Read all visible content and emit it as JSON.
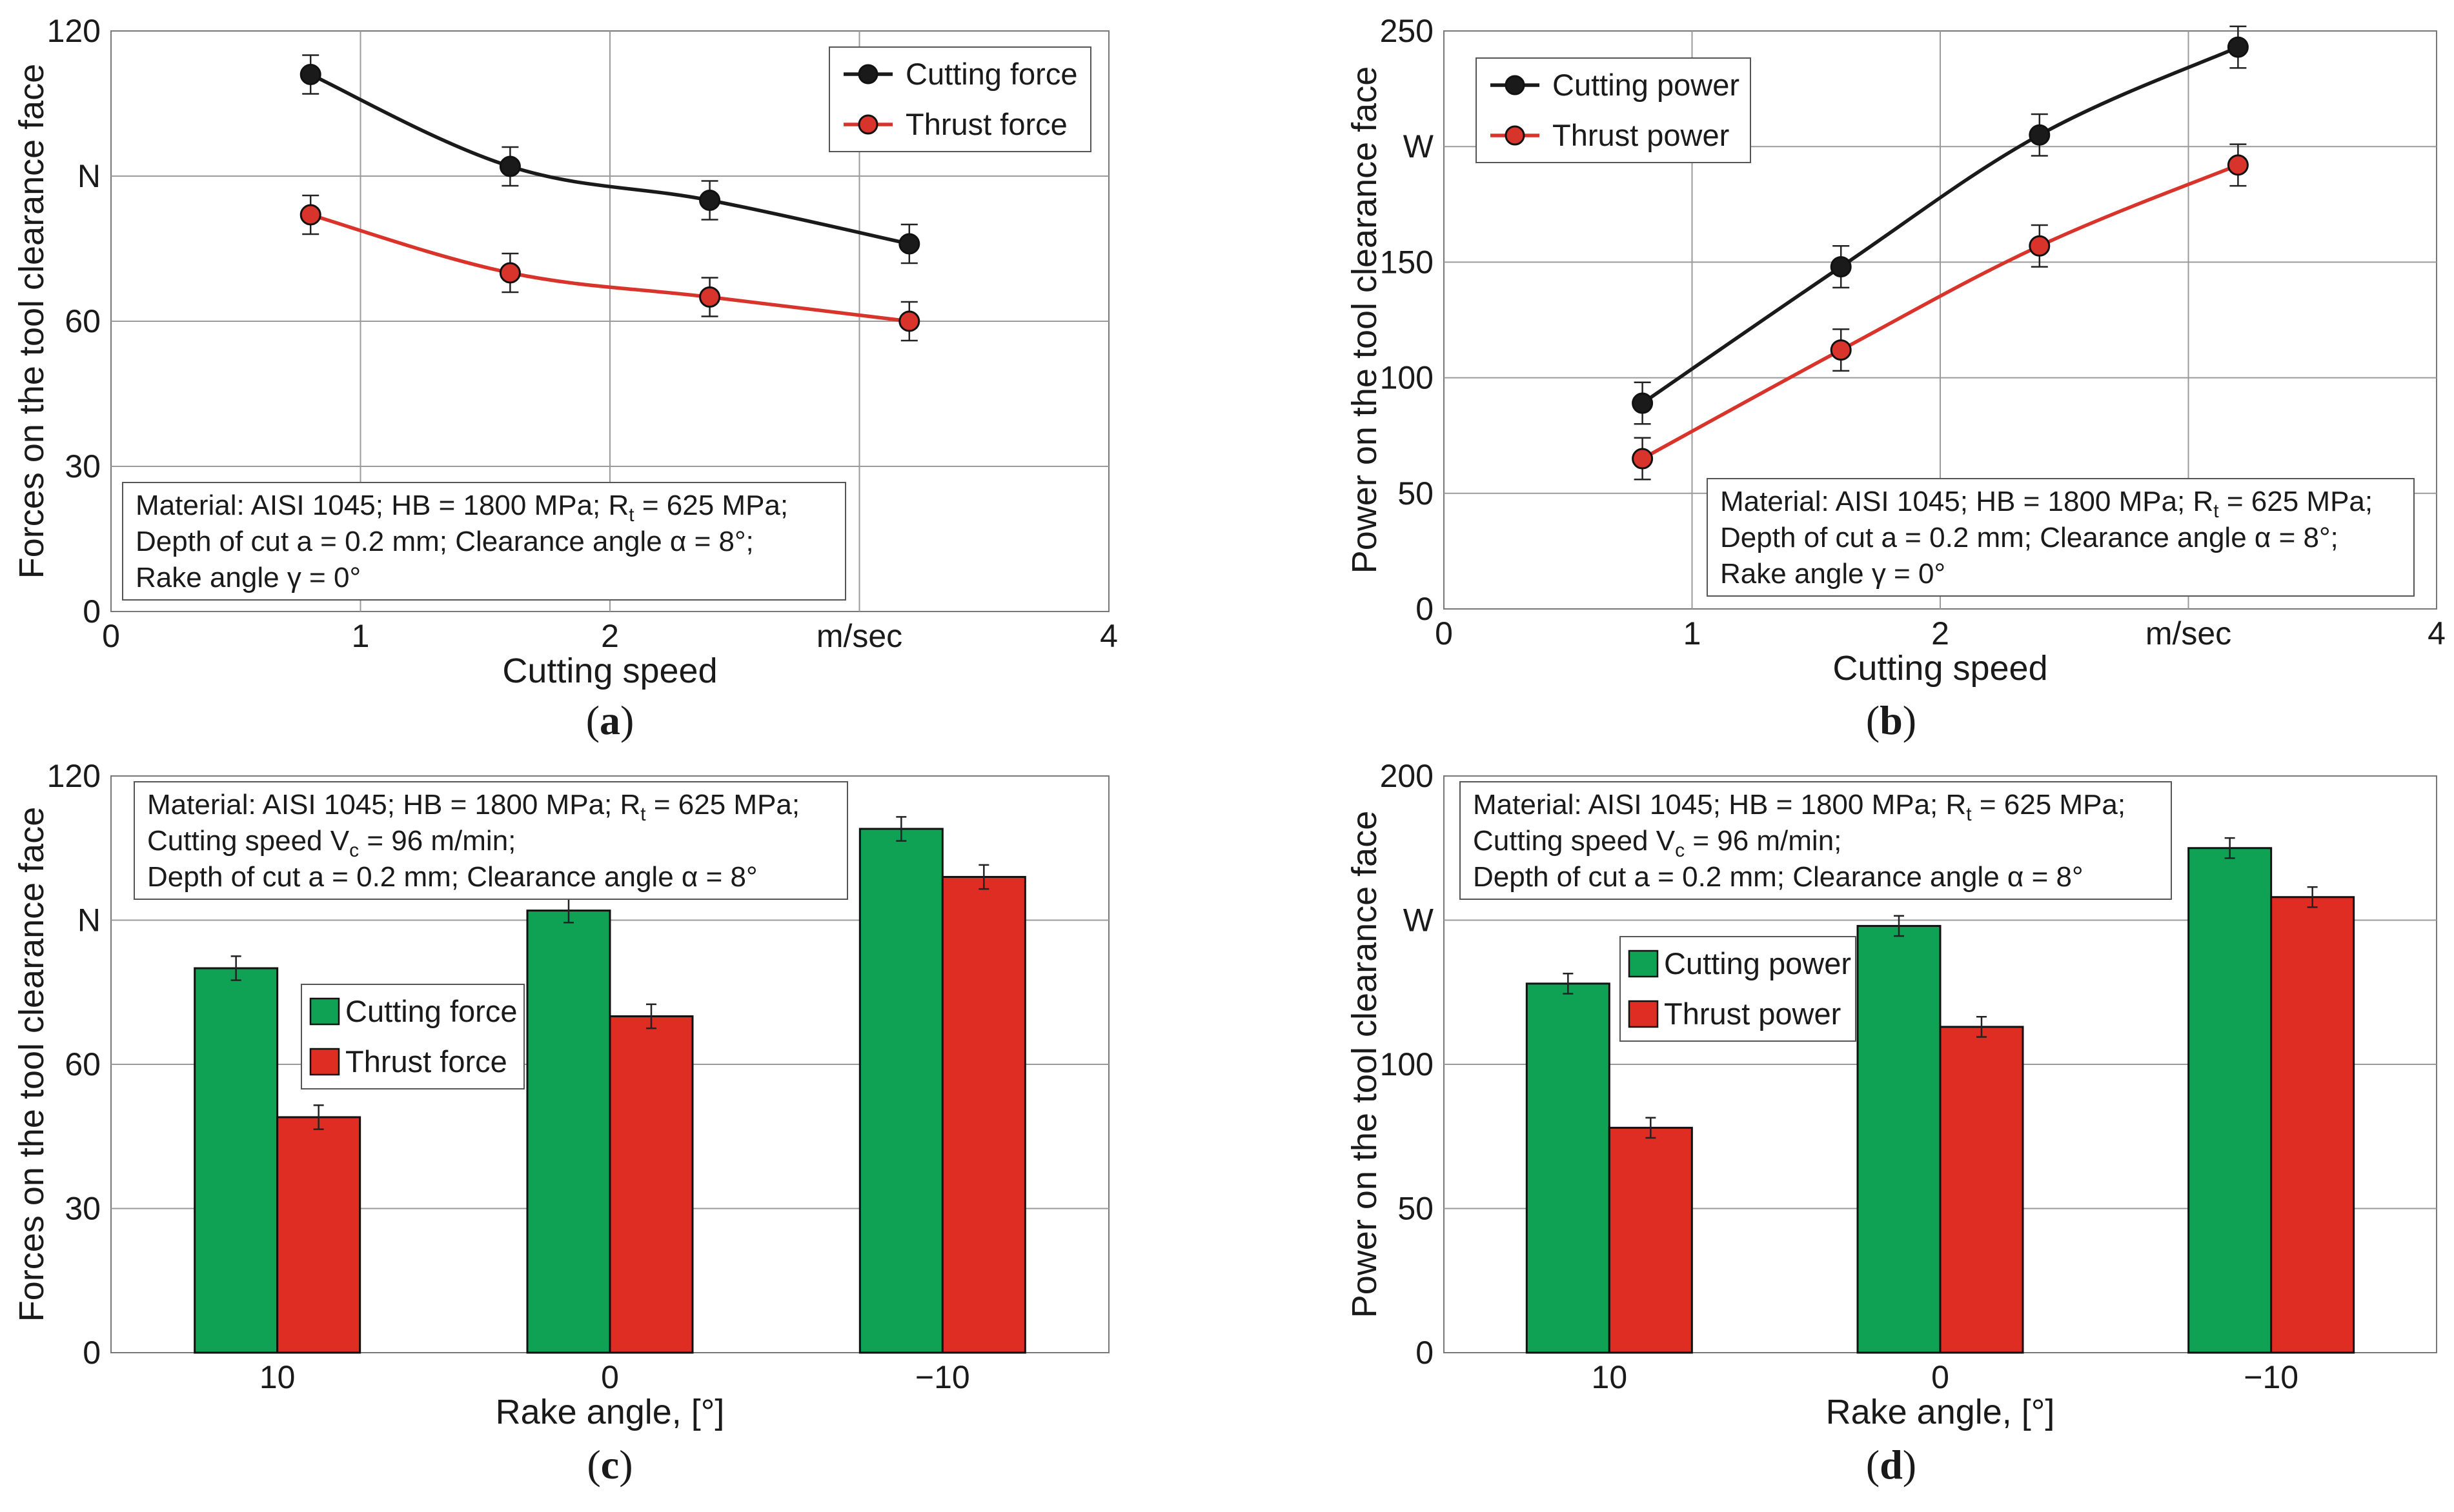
{
  "colors": {
    "black_series": "#1a1a1a",
    "red_series": "#d9342b",
    "green_bar": "#0fa154",
    "red_bar": "#e02d24",
    "grid": "#9a9a9a"
  },
  "chart_data": [
    {
      "id": "a",
      "type": "line",
      "panel_label": "a",
      "xlabel": "Cutting speed",
      "ylabel": "Forces on the tool clearance face",
      "xlim": [
        0,
        4
      ],
      "ylim": [
        0,
        120
      ],
      "xticks": [
        {
          "v": 0,
          "label": "0"
        },
        {
          "v": 1,
          "label": "1"
        },
        {
          "v": 2,
          "label": "2"
        },
        {
          "v": 3,
          "label": "m/sec"
        },
        {
          "v": 4,
          "label": "4"
        }
      ],
      "yticks": [
        {
          "v": 0,
          "label": "0"
        },
        {
          "v": 30,
          "label": "30"
        },
        {
          "v": 60,
          "label": "60"
        },
        {
          "v": 90,
          "label": "N"
        },
        {
          "v": 120,
          "label": "120"
        }
      ],
      "x": [
        0.8,
        1.6,
        2.4,
        3.2
      ],
      "series": [
        {
          "name": "Cutting force",
          "values": [
            111,
            92,
            85,
            76
          ],
          "err": [
            4,
            4,
            4,
            4
          ],
          "color": "#1a1a1a"
        },
        {
          "name": "Thrust force",
          "values": [
            82,
            70,
            65,
            60
          ],
          "err": [
            4,
            4,
            4,
            4
          ],
          "color": "#d9342b"
        }
      ],
      "legend": [
        "Cutting force",
        "Thrust force"
      ],
      "note": [
        "Material: AISI 1045; HB = 1800 MPa; R",
        "t",
        " = 625 MPa;",
        "Depth of cut a = 0.2 mm; Clearance angle α = 8°;",
        "Rake angle γ = 0°"
      ]
    },
    {
      "id": "b",
      "type": "line",
      "panel_label": "b",
      "xlabel": "Cutting speed",
      "ylabel": "Power on the tool clearance face",
      "xlim": [
        0,
        4
      ],
      "ylim": [
        0,
        250
      ],
      "xticks": [
        {
          "v": 0,
          "label": "0"
        },
        {
          "v": 1,
          "label": "1"
        },
        {
          "v": 2,
          "label": "2"
        },
        {
          "v": 3,
          "label": "m/sec"
        },
        {
          "v": 4,
          "label": "4"
        }
      ],
      "yticks": [
        {
          "v": 0,
          "label": "0"
        },
        {
          "v": 50,
          "label": "50"
        },
        {
          "v": 100,
          "label": "100"
        },
        {
          "v": 150,
          "label": "150"
        },
        {
          "v": 200,
          "label": "W"
        },
        {
          "v": 250,
          "label": "250"
        }
      ],
      "x": [
        0.8,
        1.6,
        2.4,
        3.2
      ],
      "series": [
        {
          "name": "Cutting power",
          "values": [
            89,
            148,
            205,
            243
          ],
          "err": [
            9,
            9,
            9,
            9
          ],
          "color": "#1a1a1a"
        },
        {
          "name": "Thrust power",
          "values": [
            65,
            112,
            157,
            192
          ],
          "err": [
            9,
            9,
            9,
            9
          ],
          "color": "#d9342b"
        }
      ],
      "legend": [
        "Cutting power",
        "Thrust power"
      ],
      "note": [
        "Material: AISI 1045; HB = 1800 MPa; R",
        "t",
        " = 625 MPa;",
        "Depth of cut a = 0.2 mm; Clearance angle α = 8°;",
        "Rake angle γ = 0°"
      ]
    },
    {
      "id": "c",
      "type": "bar",
      "panel_label": "c",
      "xlabel": "Rake angle, [°]",
      "ylabel": "Forces on the tool clearance face",
      "ylim": [
        0,
        120
      ],
      "categories": [
        "10",
        "0",
        "−10"
      ],
      "yticks": [
        {
          "v": 0,
          "label": "0"
        },
        {
          "v": 30,
          "label": "30"
        },
        {
          "v": 60,
          "label": "60"
        },
        {
          "v": 90,
          "label": "N"
        },
        {
          "v": 120,
          "label": "120"
        }
      ],
      "series": [
        {
          "name": "Cutting force",
          "values": [
            80,
            92,
            109
          ],
          "err": [
            2.5,
            2.5,
            2.5
          ],
          "color": "#0fa154"
        },
        {
          "name": "Thrust force",
          "values": [
            49,
            70,
            99
          ],
          "err": [
            2.5,
            2.5,
            2.5
          ],
          "color": "#e02d24"
        }
      ],
      "legend": [
        "Cutting force",
        "Thrust force"
      ],
      "note": [
        "Material: AISI 1045; HB = 1800 MPa; R",
        "t",
        " = 625 MPa;",
        "Cutting speed V",
        "c",
        " = 96 m/min;",
        "Depth of cut a = 0.2 mm; Clearance angle α = 8°"
      ]
    },
    {
      "id": "d",
      "type": "bar",
      "panel_label": "d",
      "xlabel": "Rake angle, [°]",
      "ylabel": "Power on the tool clearance face",
      "ylim": [
        0,
        200
      ],
      "categories": [
        "10",
        "0",
        "−10"
      ],
      "yticks": [
        {
          "v": 0,
          "label": "0"
        },
        {
          "v": 50,
          "label": "50"
        },
        {
          "v": 100,
          "label": "100"
        },
        {
          "v": 150,
          "label": "W"
        },
        {
          "v": 200,
          "label": "200"
        }
      ],
      "series": [
        {
          "name": "Cutting power",
          "values": [
            128,
            148,
            175
          ],
          "err": [
            3.5,
            3.5,
            3.5
          ],
          "color": "#0fa154"
        },
        {
          "name": "Thrust power",
          "values": [
            78,
            113,
            158
          ],
          "err": [
            3.5,
            3.5,
            3.5
          ],
          "color": "#e02d24"
        }
      ],
      "legend": [
        "Cutting power",
        "Thrust power"
      ],
      "note": [
        "Material: AISI 1045; HB = 1800 MPa; R",
        "t",
        " = 625 MPa;",
        "Cutting speed V",
        "c",
        " = 96 m/min;",
        "Depth of cut a = 0.2 mm; Clearance angle α = 8°"
      ]
    }
  ]
}
